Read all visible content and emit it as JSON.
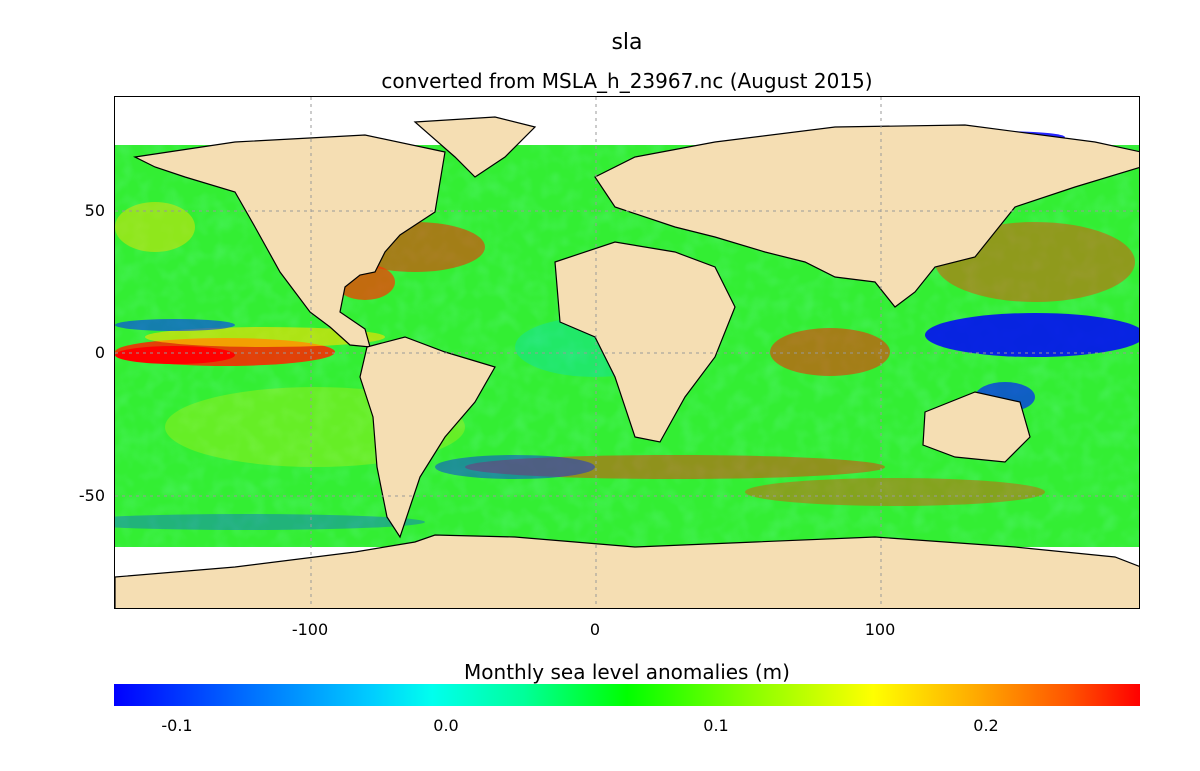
{
  "title": "sla",
  "subtitle": "converted from MSLA_h_23967.nc (August 2015)",
  "map": {
    "lon_range": [
      -170,
      190
    ],
    "lat_range": [
      -90,
      90
    ],
    "y_ticks": [
      "50",
      "0",
      "-50"
    ],
    "x_ticks": [
      "-100",
      "0",
      "100"
    ],
    "grid": true,
    "ocean_base_color": "#33ee33",
    "land_color": "#f5deb3",
    "coast_color": "#000000"
  },
  "colorbar": {
    "label": "Monthly sea level anomalies (m)",
    "ticks": [
      "-0.1",
      "0.0",
      "0.1",
      "0.2"
    ],
    "colors": [
      "#0000ff",
      "#00ffff",
      "#00ff00",
      "#ffff00",
      "#ff0000"
    ]
  }
}
